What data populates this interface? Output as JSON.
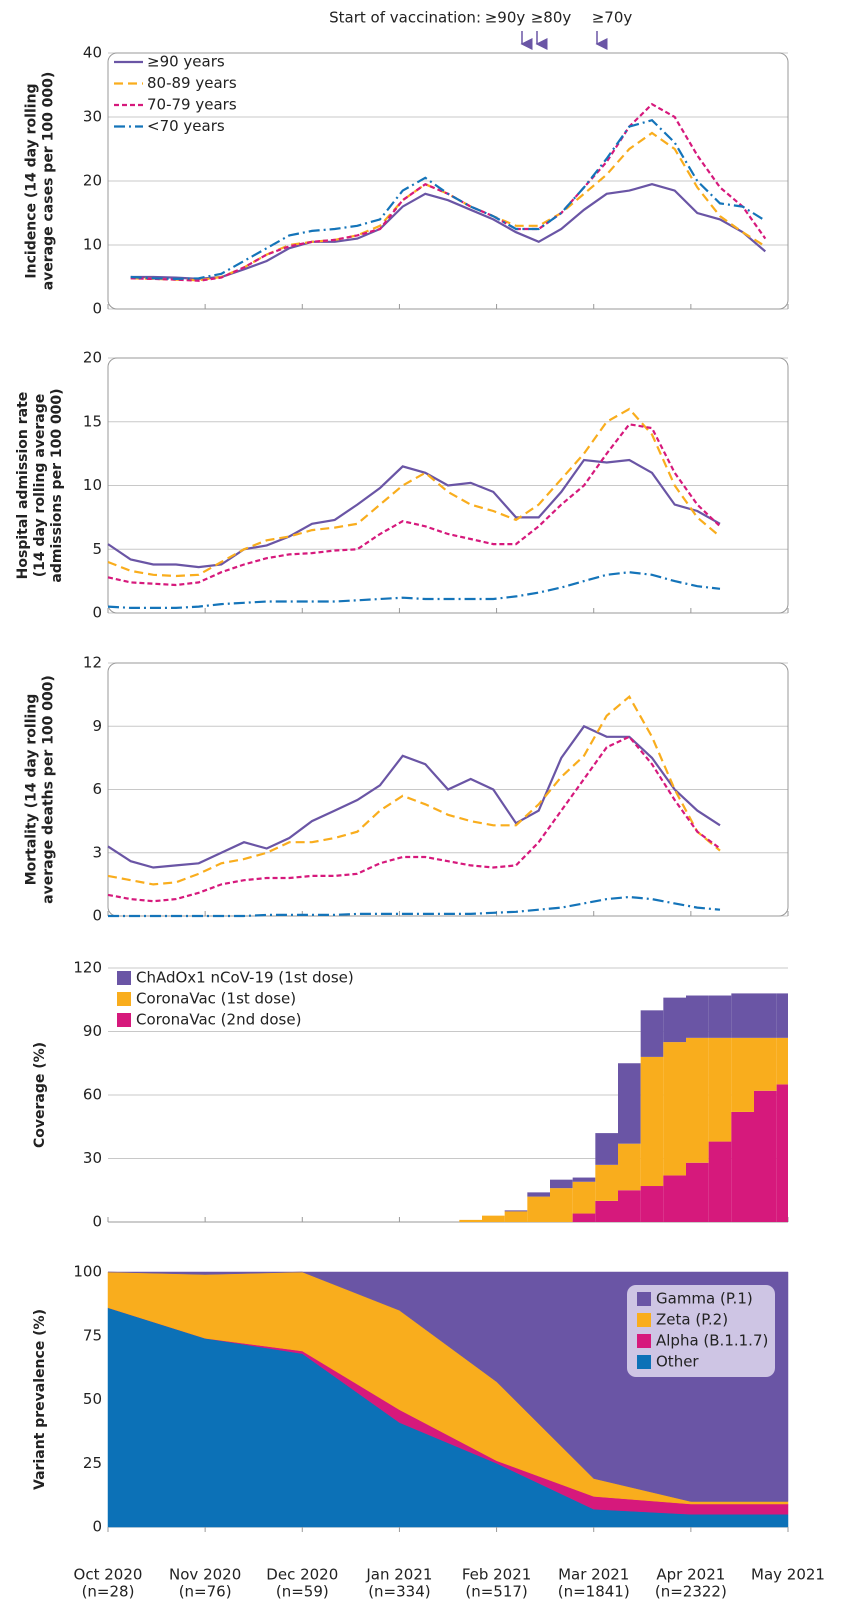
{
  "chart_data": [
    {
      "type": "line",
      "annotation": {
        "text": "Start of vaccination:",
        "labels": [
          "≥90y",
          "≥80y",
          "≥70y"
        ]
      },
      "y_label": [
        "Incidence (14 day rolling",
        "average cases per 100 000)"
      ],
      "ylim": [
        0,
        40
      ],
      "yticks": [
        0,
        10,
        20,
        30,
        40
      ],
      "grid": true,
      "legend": "upper left",
      "series": [
        {
          "name": "≥90 years",
          "color": "#6a55a5",
          "linestyle": "solid",
          "values": [
            null,
            5.0,
            5.0,
            4.9,
            4.7,
            5.0,
            6.2,
            7.5,
            9.5,
            10.5,
            10.5,
            11.0,
            12.5,
            16,
            18,
            17,
            15.5,
            14,
            12,
            10.5,
            12.5,
            15.5,
            18,
            18.5,
            19.5,
            18.5,
            15,
            14,
            12,
            9,
            null
          ]
        },
        {
          "name": "80-89 years",
          "color": "#f9ad1d",
          "linestyle": "dashed",
          "values": [
            null,
            4.8,
            4.7,
            4.6,
            4.5,
            5.0,
            6.5,
            8.5,
            10,
            10.5,
            10.8,
            11.5,
            13,
            17,
            19.5,
            18,
            16,
            14.5,
            13,
            13,
            15,
            18,
            21,
            25,
            27.5,
            25,
            19,
            14.5,
            12,
            9.8,
            null
          ]
        },
        {
          "name": "70-79 years",
          "color": "#d6197c",
          "linestyle": "dotted",
          "values": [
            null,
            4.8,
            4.7,
            4.6,
            4.4,
            4.9,
            6.5,
            8.5,
            9.8,
            10.5,
            10.8,
            11.5,
            12.5,
            17,
            19.5,
            18,
            16,
            14.5,
            12.5,
            12.5,
            15,
            19,
            23,
            28.5,
            32,
            30,
            24,
            19,
            16,
            11,
            null
          ]
        },
        {
          "name": "<70 years",
          "color": "#1474b9",
          "linestyle": "dashdot",
          "values": [
            null,
            5.0,
            4.8,
            4.7,
            4.8,
            5.5,
            7.5,
            9.5,
            11.5,
            12.2,
            12.5,
            13,
            14,
            18.5,
            20.5,
            18,
            16,
            14.5,
            12.5,
            12.5,
            15,
            19,
            23.5,
            28.5,
            29.5,
            26,
            20,
            16.5,
            16,
            13.8,
            null
          ]
        }
      ]
    },
    {
      "type": "line",
      "y_label": [
        "Hospital admission rate",
        "(14 day rolling average",
        "admissions per 100 000)"
      ],
      "ylim": [
        0,
        20
      ],
      "yticks": [
        0,
        5,
        10,
        15,
        20
      ],
      "grid": true,
      "series": [
        {
          "color": "#6a55a5",
          "linestyle": "solid",
          "values": [
            5.4,
            4.2,
            3.8,
            3.8,
            3.6,
            3.8,
            5.0,
            5.3,
            6.0,
            7.0,
            7.3,
            8.5,
            9.8,
            11.5,
            11,
            10.0,
            10.2,
            9.5,
            7.5,
            7.5,
            9.5,
            12.0,
            11.8,
            12.0,
            11.0,
            8.5,
            8.0,
            7.0,
            null,
            null,
            null
          ]
        },
        {
          "color": "#f9ad1d",
          "linestyle": "dashed",
          "values": [
            4.0,
            3.3,
            3.0,
            2.9,
            3.0,
            4.0,
            5.0,
            5.7,
            6.0,
            6.5,
            6.7,
            7.0,
            8.5,
            10.0,
            11.0,
            9.5,
            8.5,
            8.0,
            7.3,
            8.5,
            10.5,
            12.5,
            15.0,
            16.0,
            14.0,
            10.0,
            7.5,
            6.0,
            null,
            null,
            null
          ]
        },
        {
          "color": "#d6197c",
          "linestyle": "dotted",
          "values": [
            2.8,
            2.4,
            2.3,
            2.2,
            2.4,
            3.2,
            3.8,
            4.3,
            4.6,
            4.7,
            4.9,
            5.0,
            6.2,
            7.2,
            6.8,
            6.2,
            5.8,
            5.4,
            5.4,
            6.8,
            8.5,
            10.0,
            12.5,
            14.8,
            14.5,
            11.0,
            8.5,
            6.8,
            null,
            null,
            null
          ]
        },
        {
          "color": "#1474b9",
          "linestyle": "dashdot",
          "values": [
            0.5,
            0.4,
            0.4,
            0.4,
            0.5,
            0.7,
            0.8,
            0.9,
            0.9,
            0.9,
            0.9,
            1.0,
            1.1,
            1.2,
            1.1,
            1.1,
            1.1,
            1.1,
            1.3,
            1.6,
            2.0,
            2.5,
            3.0,
            3.2,
            3.0,
            2.5,
            2.1,
            1.9,
            null,
            null,
            null
          ]
        }
      ]
    },
    {
      "type": "line",
      "y_label": [
        "Mortality (14 day rolling",
        "average deaths per 100 000)"
      ],
      "ylim": [
        0,
        12
      ],
      "yticks": [
        0,
        3,
        6,
        9,
        12
      ],
      "grid": true,
      "series": [
        {
          "color": "#6a55a5",
          "linestyle": "solid",
          "values": [
            3.3,
            2.6,
            2.3,
            2.4,
            2.5,
            3.0,
            3.5,
            3.2,
            3.7,
            4.5,
            5.0,
            5.5,
            6.2,
            7.6,
            7.2,
            6.0,
            6.5,
            6.0,
            4.4,
            5.0,
            7.5,
            9.0,
            8.5,
            8.5,
            7.5,
            6.0,
            5.0,
            4.3,
            null,
            null,
            null
          ]
        },
        {
          "color": "#f9ad1d",
          "linestyle": "dashed",
          "values": [
            1.9,
            1.7,
            1.5,
            1.6,
            2.0,
            2.5,
            2.7,
            3.0,
            3.5,
            3.5,
            3.7,
            4.0,
            5.0,
            5.7,
            5.3,
            4.8,
            4.5,
            4.3,
            4.3,
            5.3,
            6.6,
            7.6,
            9.5,
            10.4,
            8.5,
            6.0,
            4.0,
            3.1,
            null,
            null,
            null
          ]
        },
        {
          "color": "#d6197c",
          "linestyle": "dotted",
          "values": [
            1.0,
            0.8,
            0.7,
            0.8,
            1.1,
            1.5,
            1.7,
            1.8,
            1.8,
            1.9,
            1.9,
            2.0,
            2.5,
            2.8,
            2.8,
            2.6,
            2.4,
            2.3,
            2.4,
            3.5,
            5.0,
            6.5,
            8.0,
            8.5,
            7.2,
            5.5,
            4.0,
            3.2,
            null,
            null,
            null
          ]
        },
        {
          "color": "#1474b9",
          "linestyle": "dashdot",
          "values": [
            0,
            0,
            0,
            0,
            0,
            0,
            0,
            0.05,
            0.05,
            0.05,
            0.05,
            0.1,
            0.1,
            0.1,
            0.1,
            0.1,
            0.1,
            0.15,
            0.2,
            0.3,
            0.4,
            0.6,
            0.8,
            0.9,
            0.8,
            0.6,
            0.4,
            0.3,
            null,
            null,
            null
          ]
        }
      ]
    },
    {
      "type": "stacked_step",
      "y_label": [
        "Coverage (%)"
      ],
      "ylim": [
        0,
        120
      ],
      "yticks": [
        0,
        30,
        60,
        90,
        120
      ],
      "grid": true,
      "legend": "upper left",
      "series": [
        {
          "name": "ChAdOx1 nCoV-19 (1st dose)",
          "color": "#6a55a5",
          "values": [
            0,
            0,
            0,
            0,
            0,
            0,
            0,
            0,
            0,
            0,
            0,
            0,
            0,
            0,
            0,
            0,
            0,
            0,
            0.5,
            2,
            4,
            2,
            15,
            38,
            22,
            21,
            20,
            20,
            21,
            21,
            21
          ]
        },
        {
          "name": "CoronaVac (1st dose)",
          "color": "#f9ad1d",
          "values": [
            0,
            0,
            0,
            0,
            0,
            0,
            0,
            0,
            0,
            0,
            0,
            0,
            0,
            0,
            0,
            0,
            1,
            3,
            5,
            12,
            16,
            15,
            17,
            22,
            61,
            63,
            59,
            49,
            35,
            25,
            22
          ]
        },
        {
          "name": "CoronaVac (2nd dose)",
          "color": "#d6197c",
          "values": [
            0,
            0,
            0,
            0,
            0,
            0,
            0,
            0,
            0,
            0,
            0,
            0,
            0,
            0,
            0,
            0,
            0,
            0,
            0,
            0,
            0,
            4,
            10,
            15,
            17,
            22,
            28,
            38,
            52,
            62,
            65
          ]
        }
      ]
    },
    {
      "type": "stacked_area",
      "y_label": [
        "Variant prevalence (%)"
      ],
      "categories": [
        "Oct 2020",
        "Nov 2020",
        "Dec 2020",
        "Jan 2021",
        "Feb 2021",
        "Mar 2021",
        "Apr 2021",
        "May 2021"
      ],
      "n_labels": [
        "(n=28)",
        "(n=76)",
        "(n=59)",
        "(n=334)",
        "(n=517)",
        "(n=1841)",
        "(n=2322)",
        null
      ],
      "ylim": [
        0,
        100
      ],
      "yticks": [
        0,
        25,
        50,
        75,
        100
      ],
      "legend": "upper right",
      "series": [
        {
          "name": "Gamma (P.1)",
          "color": "#6a55a5",
          "values": [
            0,
            1,
            0,
            15,
            43,
            81,
            90,
            90
          ]
        },
        {
          "name": "Zeta (P.2)",
          "color": "#f9ad1d",
          "values": [
            14,
            25,
            31,
            39,
            31,
            7,
            1,
            1
          ]
        },
        {
          "name": "Alpha (B.1.1.7)",
          "color": "#d6197c",
          "values": [
            0,
            0,
            1,
            5,
            1,
            5,
            4,
            4
          ]
        },
        {
          "name": "Other",
          "color": "#0c71b7",
          "values": [
            86,
            74,
            68,
            41,
            25,
            7,
            5,
            5
          ]
        }
      ]
    }
  ]
}
